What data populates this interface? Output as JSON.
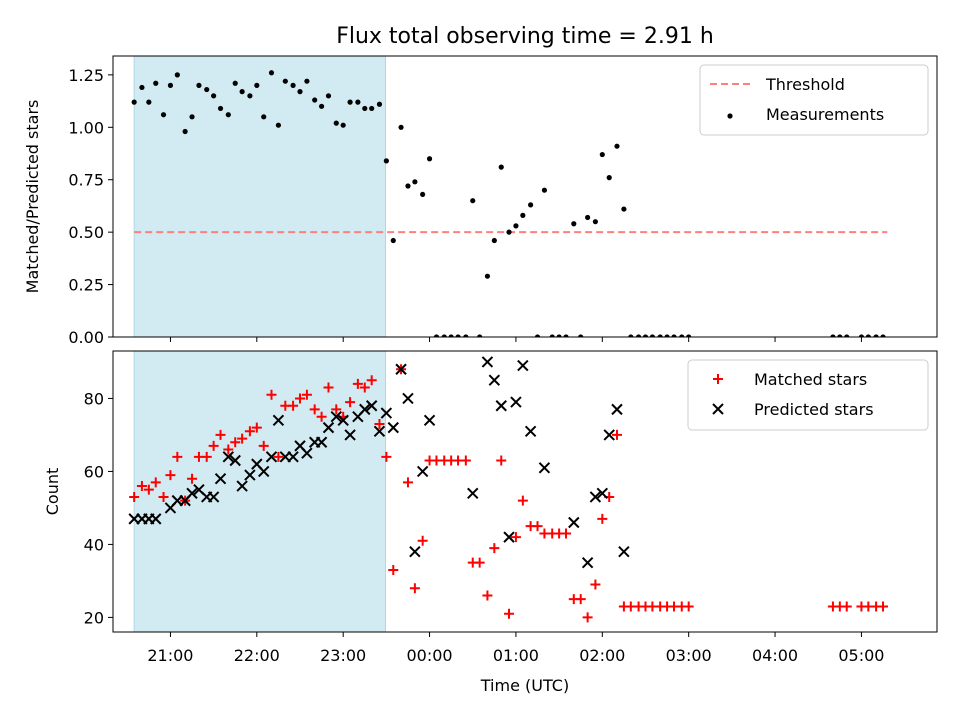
{
  "figure": {
    "title": "Flux total observing time = 2.91 h",
    "xlabel": "Time (UTC)",
    "x_ticks": [
      "21:00",
      "22:00",
      "23:00",
      "00:00",
      "01:00",
      "02:00",
      "03:00",
      "04:00",
      "05:00"
    ]
  },
  "colors": {
    "shade": "#add8e6",
    "threshold": "#ff7f7f",
    "matched": "#ff0000",
    "predicted": "#000000",
    "measurements": "#000000"
  },
  "chart_data": [
    {
      "type": "scatter",
      "panel": "top",
      "ylabel": "Matched/Predicted stars",
      "x_unit": "hours since 20:00 UTC",
      "xlim": [
        0.335,
        9.875
      ],
      "ylim": [
        0.0,
        1.34
      ],
      "y_ticks": [
        "0.00",
        "0.25",
        "0.50",
        "0.75",
        "1.00",
        "1.25"
      ],
      "y_tick_values": [
        0,
        0.25,
        0.5,
        0.75,
        1.0,
        1.25
      ],
      "shaded_region": [
        0.58,
        3.49
      ],
      "legend": {
        "position": "top-right",
        "entries": [
          "Threshold",
          "Measurements"
        ]
      },
      "threshold": {
        "name": "Threshold",
        "y": 0.5,
        "x_range": [
          0.58,
          9.3
        ]
      },
      "series": [
        {
          "name": "Measurements",
          "x": [
            0.58,
            0.67,
            0.75,
            0.83,
            0.92,
            1.0,
            1.08,
            1.17,
            1.25,
            1.33,
            1.42,
            1.5,
            1.58,
            1.67,
            1.75,
            1.83,
            1.92,
            2.0,
            2.08,
            2.17,
            2.25,
            2.33,
            2.42,
            2.5,
            2.58,
            2.67,
            2.75,
            2.83,
            2.92,
            3.0,
            3.08,
            3.17,
            3.25,
            3.33,
            3.42,
            3.5,
            3.58,
            3.67,
            3.75,
            3.83,
            3.92,
            4.0,
            4.08,
            4.17,
            4.25,
            4.33,
            4.42,
            4.5,
            4.58,
            4.67,
            4.75,
            4.83,
            4.92,
            5.0,
            5.08,
            5.17,
            5.25,
            5.33,
            5.42,
            5.5,
            5.58,
            5.67,
            5.75,
            5.83,
            5.92,
            6.0,
            6.08,
            6.17,
            6.25,
            6.33,
            6.42,
            6.5,
            6.58,
            6.67,
            6.75,
            6.83,
            6.92,
            7.0,
            8.67,
            8.75,
            8.83,
            9.0,
            9.08,
            9.17,
            9.25
          ],
          "y": [
            1.12,
            1.19,
            1.12,
            1.21,
            1.06,
            1.2,
            1.25,
            0.98,
            1.05,
            1.2,
            1.18,
            1.15,
            1.09,
            1.06,
            1.21,
            1.17,
            1.15,
            1.2,
            1.05,
            1.26,
            1.01,
            1.22,
            1.2,
            1.17,
            1.22,
            1.13,
            1.1,
            1.15,
            1.02,
            1.01,
            1.12,
            1.12,
            1.09,
            1.09,
            1.11,
            0.84,
            0.46,
            1.0,
            0.72,
            0.74,
            0.68,
            0.85,
            0.0,
            0.0,
            0.0,
            0.0,
            0.0,
            0.65,
            0.0,
            0.29,
            0.46,
            0.81,
            0.5,
            0.53,
            0.58,
            0.63,
            0.0,
            0.7,
            0.0,
            0.0,
            0.0,
            0.54,
            0.0,
            0.57,
            0.55,
            0.87,
            0.76,
            0.91,
            0.61,
            0.0,
            0.0,
            0.0,
            0.0,
            0.0,
            0.0,
            0.0,
            0.0,
            0.0,
            0.0,
            0.0,
            0.0,
            0.0,
            0.0,
            0.0,
            0.0
          ]
        }
      ]
    },
    {
      "type": "scatter",
      "panel": "bottom",
      "ylabel": "Count",
      "x_unit": "hours since 20:00 UTC",
      "xlim": [
        0.335,
        9.875
      ],
      "ylim": [
        16,
        93
      ],
      "y_ticks": [
        "20",
        "40",
        "60",
        "80"
      ],
      "y_tick_values": [
        20,
        40,
        60,
        80
      ],
      "shaded_region": [
        0.58,
        3.49
      ],
      "legend": {
        "position": "top-right",
        "entries": [
          "Matched stars",
          "Predicted stars"
        ]
      },
      "series": [
        {
          "name": "Matched stars",
          "marker": "plus",
          "x": [
            0.58,
            0.67,
            0.75,
            0.83,
            0.92,
            1.0,
            1.08,
            1.17,
            1.25,
            1.33,
            1.42,
            1.5,
            1.58,
            1.67,
            1.75,
            1.83,
            1.92,
            2.0,
            2.08,
            2.17,
            2.25,
            2.33,
            2.42,
            2.5,
            2.58,
            2.67,
            2.75,
            2.83,
            2.92,
            3.0,
            3.08,
            3.17,
            3.25,
            3.33,
            3.42,
            3.5,
            3.58,
            3.67,
            3.75,
            3.83,
            3.92,
            4.0,
            4.08,
            4.17,
            4.25,
            4.33,
            4.42,
            4.5,
            4.58,
            4.67,
            4.75,
            4.83,
            4.92,
            5.0,
            5.08,
            5.17,
            5.25,
            5.33,
            5.42,
            5.5,
            5.58,
            5.67,
            5.75,
            5.83,
            5.92,
            6.0,
            6.08,
            6.17,
            6.25,
            6.33,
            6.42,
            6.5,
            6.58,
            6.67,
            6.75,
            6.83,
            6.92,
            7.0,
            8.67,
            8.75,
            8.83,
            9.0,
            9.08,
            9.17,
            9.25
          ],
          "y": [
            53,
            56,
            55,
            57,
            53,
            59,
            64,
            52,
            58,
            64,
            64,
            67,
            70,
            66,
            68,
            69,
            71,
            72,
            67,
            81,
            64,
            78,
            78,
            80,
            81,
            77,
            75,
            83,
            77,
            75,
            79,
            84,
            83,
            85,
            73,
            64,
            33,
            88,
            57,
            28,
            41,
            63,
            63,
            63,
            63,
            63,
            63,
            35,
            35,
            26,
            39,
            63,
            21,
            42,
            52,
            45,
            45,
            43,
            43,
            43,
            43,
            25,
            25,
            20,
            29,
            47,
            53,
            70,
            23,
            23,
            23,
            23,
            23,
            23,
            23,
            23,
            23,
            23,
            23,
            23,
            23,
            23,
            23,
            23,
            23
          ]
        },
        {
          "name": "Predicted stars",
          "marker": "x",
          "x": [
            0.58,
            0.67,
            0.75,
            0.83,
            1.0,
            1.08,
            1.17,
            1.25,
            1.33,
            1.42,
            1.5,
            1.58,
            1.67,
            1.75,
            1.83,
            1.92,
            2.0,
            2.08,
            2.17,
            2.25,
            2.33,
            2.42,
            2.5,
            2.58,
            2.67,
            2.75,
            2.83,
            2.92,
            3.0,
            3.08,
            3.17,
            3.25,
            3.33,
            3.42,
            3.5,
            3.58,
            3.67,
            3.75,
            3.83,
            3.92,
            4.0,
            4.5,
            4.67,
            4.75,
            4.83,
            4.92,
            5.0,
            5.08,
            5.17,
            5.33,
            5.67,
            5.83,
            5.92,
            6.0,
            6.08,
            6.17,
            6.25
          ],
          "y": [
            47,
            47,
            47,
            47,
            50,
            52,
            52,
            54,
            55,
            53,
            53,
            58,
            64,
            63,
            56,
            59,
            62,
            60,
            64,
            74,
            64,
            64,
            67,
            65,
            68,
            68,
            72,
            75,
            74,
            70,
            75,
            77,
            78,
            71,
            76,
            72,
            88,
            80,
            38,
            60,
            74,
            54,
            90,
            85,
            78,
            42,
            79,
            89,
            71,
            61,
            46,
            35,
            53,
            54,
            70,
            77,
            38
          ]
        }
      ]
    }
  ]
}
